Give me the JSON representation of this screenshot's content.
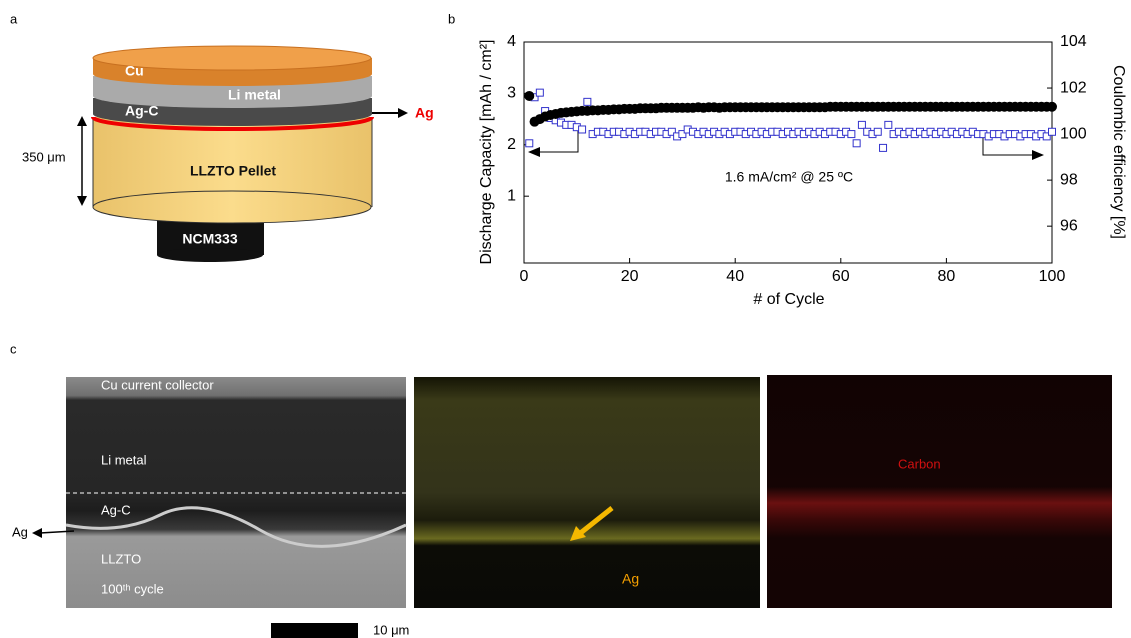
{
  "panel_labels": [
    "a",
    "b",
    "c"
  ],
  "diagram": {
    "layers": [
      "Cu",
      "Li metal",
      "Ag-C",
      "LLZTO Pellet",
      "NCM333"
    ],
    "interlayer": "Ag",
    "thickness": "350 μm"
  },
  "chart_data": {
    "type": "scatter",
    "x_label": "# of Cycle",
    "y_label": "Discharge Capacity [mAh / cm²]",
    "y2_label": "Coulombic efficiency [%]",
    "annotation": "1.6 mA/cm² @ 25 ºC",
    "xlim": [
      0,
      100
    ],
    "xticks": [
      0,
      20,
      40,
      60,
      80,
      100
    ],
    "ylim": [
      -0.3,
      4
    ],
    "yticks": [
      1,
      2,
      3,
      4
    ],
    "y2lim": [
      94.4,
      104
    ],
    "y2ticks": [
      96,
      98,
      100,
      102,
      104
    ],
    "x": [
      1,
      2,
      3,
      4,
      5,
      6,
      7,
      8,
      9,
      10,
      11,
      12,
      13,
      14,
      15,
      16,
      17,
      18,
      19,
      20,
      21,
      22,
      23,
      24,
      25,
      26,
      27,
      28,
      29,
      30,
      31,
      32,
      33,
      34,
      35,
      36,
      37,
      38,
      39,
      40,
      41,
      42,
      43,
      44,
      45,
      46,
      47,
      48,
      49,
      50,
      51,
      52,
      53,
      54,
      55,
      56,
      57,
      58,
      59,
      60,
      61,
      62,
      63,
      64,
      65,
      66,
      67,
      68,
      69,
      70,
      71,
      72,
      73,
      74,
      75,
      76,
      77,
      78,
      79,
      80,
      81,
      82,
      83,
      84,
      85,
      86,
      87,
      88,
      89,
      90,
      91,
      92,
      93,
      94,
      95,
      96,
      97,
      98,
      99,
      100
    ],
    "series": [
      {
        "color": "#000000",
        "marker": "circle",
        "values": [
          2.95,
          2.45,
          2.5,
          2.55,
          2.58,
          2.6,
          2.62,
          2.63,
          2.64,
          2.65,
          2.66,
          2.66,
          2.67,
          2.67,
          2.68,
          2.68,
          2.69,
          2.69,
          2.7,
          2.7,
          2.7,
          2.71,
          2.71,
          2.71,
          2.71,
          2.72,
          2.72,
          2.72,
          2.72,
          2.72,
          2.72,
          2.72,
          2.73,
          2.72,
          2.73,
          2.73,
          2.72,
          2.73,
          2.73,
          2.73,
          2.73,
          2.73,
          2.73,
          2.73,
          2.73,
          2.73,
          2.73,
          2.73,
          2.73,
          2.73,
          2.73,
          2.73,
          2.73,
          2.73,
          2.73,
          2.73,
          2.73,
          2.74,
          2.74,
          2.74,
          2.74,
          2.74,
          2.74,
          2.74,
          2.74,
          2.74,
          2.74,
          2.74,
          2.74,
          2.74,
          2.74,
          2.74,
          2.74,
          2.74,
          2.74,
          2.74,
          2.74,
          2.74,
          2.74,
          2.74,
          2.74,
          2.74,
          2.74,
          2.74,
          2.74,
          2.74,
          2.74,
          2.74,
          2.74,
          2.74,
          2.74,
          2.74,
          2.74,
          2.74,
          2.74,
          2.74,
          2.74,
          2.74,
          2.74,
          2.74
        ]
      },
      {
        "color": "#3333cc",
        "marker": "square",
        "axis": "y2",
        "values": [
          99.6,
          101.6,
          101.8,
          101.0,
          100.7,
          100.6,
          100.5,
          100.4,
          100.4,
          100.3,
          100.2,
          101.4,
          100.0,
          100.1,
          100.1,
          100.0,
          100.1,
          100.1,
          100.0,
          100.1,
          100.0,
          100.1,
          100.1,
          100.0,
          100.1,
          100.1,
          100.0,
          100.1,
          99.9,
          100.0,
          100.2,
          100.1,
          100.0,
          100.1,
          100.0,
          100.1,
          100.0,
          100.1,
          100.0,
          100.1,
          100.1,
          100.0,
          100.1,
          100.0,
          100.1,
          100.0,
          100.1,
          100.1,
          100.0,
          100.1,
          100.0,
          100.1,
          100.0,
          100.1,
          100.0,
          100.1,
          100.0,
          100.1,
          100.1,
          100.0,
          100.1,
          100.0,
          99.6,
          100.4,
          100.1,
          100.0,
          100.1,
          99.4,
          100.4,
          100.0,
          100.1,
          100.0,
          100.1,
          100.0,
          100.1,
          100.0,
          100.1,
          100.0,
          100.1,
          100.0,
          100.1,
          100.0,
          100.1,
          100.0,
          100.1,
          100.0,
          100.0,
          99.9,
          100.0,
          100.0,
          99.9,
          100.0,
          100.0,
          99.9,
          100.0,
          100.0,
          99.9,
          100.0,
          99.9,
          100.1
        ]
      }
    ]
  },
  "micrographs": {
    "sem_labels": [
      "Cu current collector",
      "Li metal",
      "Ag-C",
      "LLZTO",
      "100ᵗʰ cycle"
    ],
    "sem_pointer": "Ag",
    "ag_map_label": "Ag",
    "carbon_map_label": "Carbon",
    "scale_bar": "10 μm"
  }
}
